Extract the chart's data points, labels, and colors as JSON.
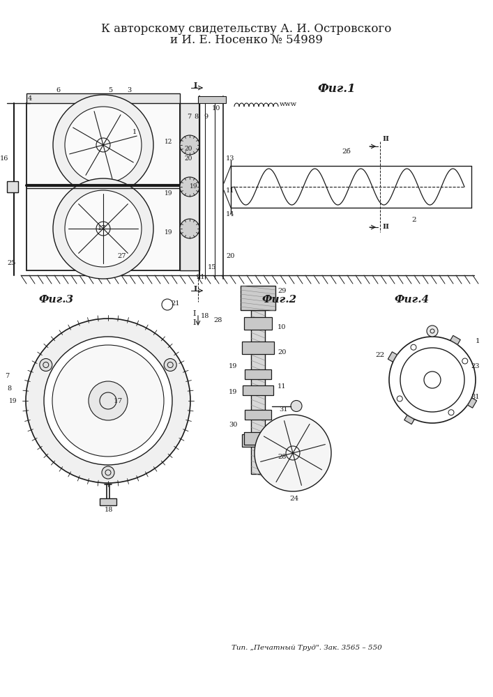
{
  "title_line1": "К авторскому свидетельству А. И. Островского",
  "title_line2": "и И. Е. Носенко № 54989",
  "footer": "Тип. „Печатный Труд\". Зак. 3565 – 550",
  "bg_color": "#ffffff",
  "line_color": "#1a1a1a",
  "fig_label1": "Фиг.1",
  "fig_label2": "Фиг.2",
  "fig_label3": "Фиг.3",
  "fig_label4": "Фиг.4"
}
